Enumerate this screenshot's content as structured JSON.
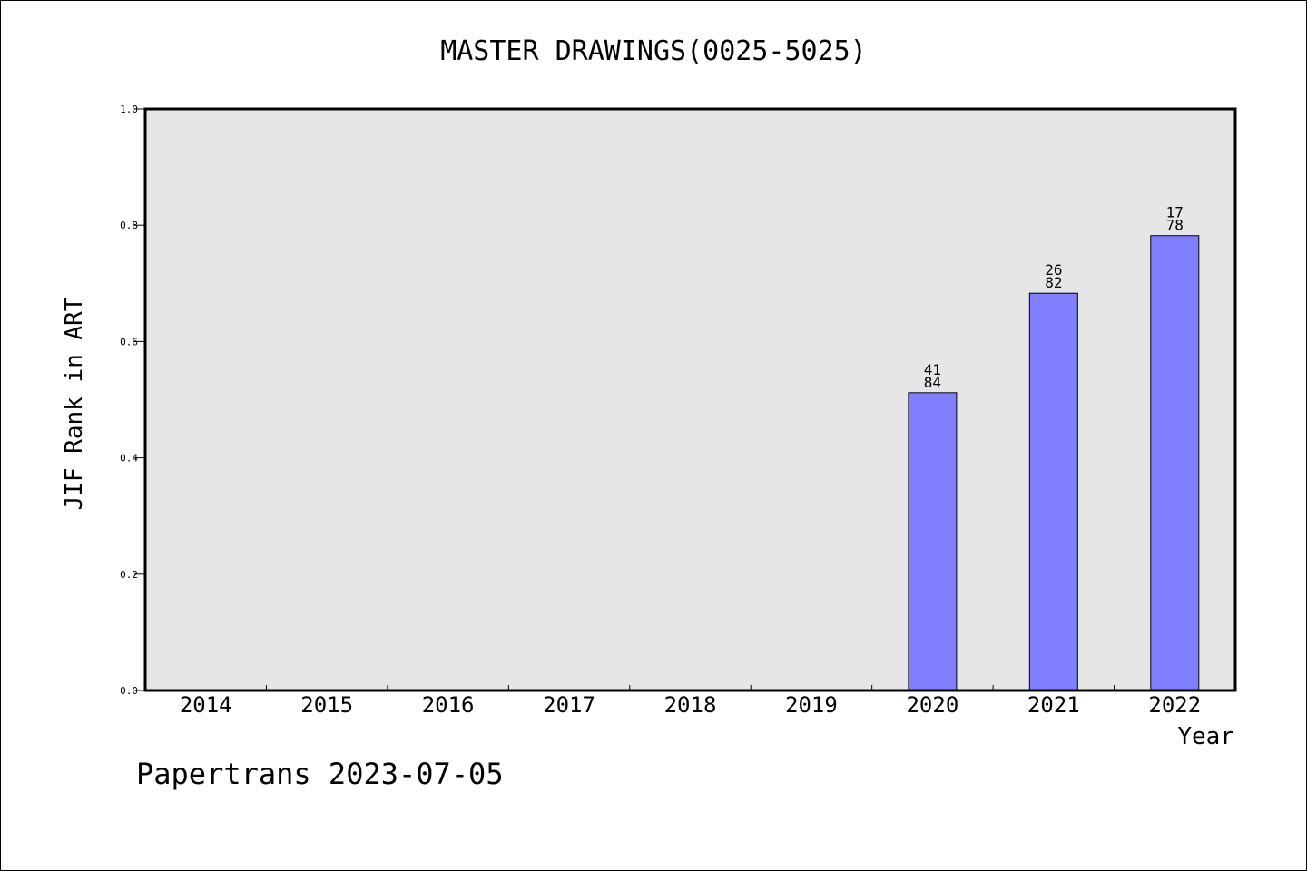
{
  "chart_data": {
    "type": "bar",
    "title": "MASTER DRAWINGS(0025-5025)",
    "xlabel": "Year",
    "ylabel": "JIF Rank in ART",
    "categories": [
      "2014",
      "2015",
      "2016",
      "2017",
      "2018",
      "2019",
      "2020",
      "2021",
      "2022"
    ],
    "values": [
      null,
      null,
      null,
      null,
      null,
      null,
      0.512,
      0.683,
      0.782
    ],
    "bar_labels": [
      null,
      null,
      null,
      null,
      null,
      null,
      {
        "top": "41",
        "bottom": "84"
      },
      {
        "top": "26",
        "bottom": "82"
      },
      {
        "top": "17",
        "bottom": "78"
      }
    ],
    "ylim": [
      0,
      1.0
    ],
    "yticks": [
      "0.0",
      "0.2",
      "0.4",
      "0.6",
      "0.8",
      "1.0"
    ],
    "grid": false,
    "colors": {
      "bar": "#8080ff",
      "plot_background": "#e6e6e6"
    }
  },
  "footer": {
    "text": "Papertrans 2023-07-05"
  }
}
